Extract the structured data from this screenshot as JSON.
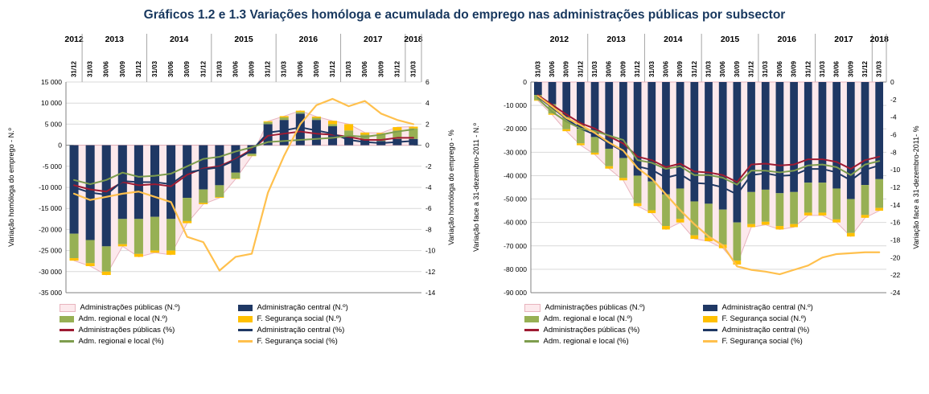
{
  "page": {
    "title": "Gráficos 1.2 e 1.3 Variações homóloga e acumulada do emprego nas administrações públicas por subsector"
  },
  "colors": {
    "central": "#1F3864",
    "regional": "#97B054",
    "ss": "#FFC000",
    "area_fill": "#FCE9EC",
    "area_stroke": "#E8B4BE",
    "line_publicas": "#9E1B32",
    "line_central": "#1F3864",
    "line_regional": "#7E9D4E",
    "line_ss": "#FFC04D",
    "title": "#17375E"
  },
  "legend": {
    "items": [
      {
        "label": "Administrações públicas (N.º)",
        "swatch": "area"
      },
      {
        "label": "Administração central (N.º)",
        "swatch": "bar-navy"
      },
      {
        "label": "Adm. regional e local (N.º)",
        "swatch": "bar-green"
      },
      {
        "label": "F. Segurança social (N.º)",
        "swatch": "bar-orange"
      },
      {
        "label": "Administrações públicas (%)",
        "swatch": "line-red"
      },
      {
        "label": "Administração central (%)",
        "swatch": "line-navy"
      },
      {
        "label": "Adm. regional e local (%)",
        "swatch": "line-green"
      },
      {
        "label": "F. Segurança social (%)",
        "swatch": "line-orange"
      }
    ]
  },
  "chart_data": [
    {
      "type": "bar",
      "subtype": "stacked-bar-with-lines",
      "title": "Variação homóloga do emprego nas administrações públicas por subsector",
      "ylabel_left": "Variação homóloga do emprego - N.º",
      "ylabel_right": "Variação homóloga do emprego - %",
      "ylim_left": [
        -35000,
        15000
      ],
      "ytick_left": 5000,
      "ylim_right": [
        -14,
        6
      ],
      "ytick_right": 2,
      "grid": true,
      "legend_position": "bottom",
      "years": [
        {
          "label": "2012",
          "span": 1
        },
        {
          "label": "2013",
          "span": 4
        },
        {
          "label": "2014",
          "span": 4
        },
        {
          "label": "2015",
          "span": 4
        },
        {
          "label": "2016",
          "span": 4
        },
        {
          "label": "2017",
          "span": 4
        },
        {
          "label": "2018",
          "span": 1
        }
      ],
      "categories": [
        "31/12",
        "31/03",
        "30/06",
        "30/09",
        "31/12",
        "31/03",
        "30/06",
        "30/09",
        "31/12",
        "31/03",
        "30/06",
        "30/09",
        "31/12",
        "31/03",
        "30/06",
        "30/09",
        "31/12",
        "31/03",
        "30/06",
        "30/09",
        "31/12",
        "31/03"
      ],
      "area_series": {
        "name": "Administrações públicas (N.º)",
        "values": [
          -27400,
          -28700,
          -30800,
          -24000,
          -26500,
          -25500,
          -26000,
          -18500,
          -14000,
          -12500,
          -8000,
          -2600,
          5700,
          6900,
          8200,
          6800,
          5800,
          5000,
          3000,
          2900,
          4300,
          4400
        ]
      },
      "bar_series": [
        {
          "name": "Administração central (N.º)",
          "color": "central",
          "values": [
            -21000,
            -22500,
            -24000,
            -17500,
            -17500,
            -17000,
            -17500,
            -12500,
            -10500,
            -9500,
            -6500,
            -2000,
            5000,
            6000,
            7500,
            6000,
            4500,
            2000,
            1500,
            1000,
            1500,
            1500
          ]
        },
        {
          "name": "Adm. regional e local (N.º)",
          "color": "regional",
          "values": [
            -5800,
            -5500,
            -6000,
            -6000,
            -8300,
            -8000,
            -7500,
            -5500,
            -3200,
            -2800,
            -1400,
            -500,
            500,
            600,
            400,
            500,
            500,
            1500,
            1000,
            1500,
            2000,
            2500
          ]
        },
        {
          "name": "F. Segurança social (N.º)",
          "color": "ss",
          "values": [
            -600,
            -700,
            -800,
            -500,
            -700,
            -500,
            -1000,
            -500,
            -300,
            -200,
            -100,
            -100,
            200,
            300,
            300,
            300,
            800,
            1500,
            500,
            400,
            800,
            400
          ]
        }
      ],
      "line_series": [
        {
          "name": "Administrações públicas (%)",
          "color": "line_publicas",
          "width": 2,
          "values": [
            -3.8,
            -4.2,
            -4.4,
            -3.5,
            -3.8,
            -3.7,
            -3.9,
            -2.8,
            -2.2,
            -2.0,
            -1.3,
            -0.4,
            0.9,
            1.1,
            1.3,
            1.1,
            1.0,
            0.8,
            0.5,
            0.5,
            0.7,
            0.7
          ]
        },
        {
          "name": "Administração central (%)",
          "color": "line_central",
          "width": 2,
          "values": [
            -4.0,
            -4.5,
            -4.7,
            -3.4,
            -3.5,
            -3.5,
            -3.7,
            -2.6,
            -2.3,
            -2.1,
            -1.4,
            -0.5,
            1.2,
            1.4,
            1.7,
            1.4,
            1.1,
            0.5,
            0.3,
            0.2,
            0.3,
            0.4
          ]
        },
        {
          "name": "Adm. regional e local (%)",
          "color": "line_regional",
          "width": 2,
          "values": [
            -3.3,
            -3.7,
            -3.3,
            -2.6,
            -3.0,
            -2.9,
            -2.7,
            -2.0,
            -1.3,
            -1.1,
            -0.6,
            -0.2,
            0.3,
            0.4,
            0.5,
            0.6,
            0.7,
            0.9,
            0.8,
            1.0,
            1.3,
            1.5
          ]
        },
        {
          "name": "F. Segurança social (%)",
          "color": "line_ss",
          "width": 2.2,
          "values": [
            -4.6,
            -5.2,
            -4.9,
            -4.6,
            -4.4,
            -4.9,
            -5.4,
            -8.7,
            -9.2,
            -11.9,
            -10.6,
            -10.3,
            -4.5,
            -1.0,
            2.0,
            3.8,
            4.4,
            3.7,
            4.2,
            3.0,
            2.4,
            2.0
          ]
        }
      ]
    },
    {
      "type": "bar",
      "subtype": "stacked-bar-with-lines",
      "title": "Variação acumulada do emprego nas administrações públicas por subsector",
      "ylabel_left": "Variação face a 31-dezembro-2011 - N.º",
      "ylabel_right": "Variação face a 31-dezembro-2011- %",
      "ylim_left": [
        -90000,
        0
      ],
      "ytick_left": 10000,
      "ylim_right": [
        -24,
        0
      ],
      "ytick_right": 2,
      "grid": true,
      "legend_position": "bottom",
      "years": [
        {
          "label": "2012",
          "span": 4
        },
        {
          "label": "2013",
          "span": 4
        },
        {
          "label": "2014",
          "span": 4
        },
        {
          "label": "2015",
          "span": 4
        },
        {
          "label": "2016",
          "span": 4
        },
        {
          "label": "2017",
          "span": 4
        },
        {
          "label": "2018",
          "span": 1
        }
      ],
      "categories": [
        "31/03",
        "30/06",
        "30/09",
        "31/12",
        "31/03",
        "30/06",
        "30/09",
        "31/12",
        "31/03",
        "30/06",
        "30/09",
        "31/12",
        "31/03",
        "30/06",
        "30/09",
        "31/12",
        "31/03",
        "30/06",
        "30/09",
        "31/12",
        "31/03",
        "30/06",
        "30/09",
        "31/12",
        "31/03"
      ],
      "area_series": {
        "name": "Administrações públicas (N.º)",
        "values": [
          -8000,
          -14000,
          -21000,
          -27000,
          -31000,
          -37000,
          -42000,
          -53000,
          -56000,
          -63000,
          -60000,
          -67000,
          -68000,
          -71000,
          -78000,
          -62000,
          -61000,
          -63000,
          -62000,
          -57000,
          -57000,
          -60000,
          -66000,
          -58000,
          -55000
        ]
      },
      "bar_series": [
        {
          "name": "Administração central (N.º)",
          "color": "central",
          "values": [
            -5500,
            -9500,
            -15000,
            -20000,
            -23500,
            -28500,
            -32500,
            -40000,
            -42500,
            -48000,
            -45500,
            -51000,
            -52000,
            -54500,
            -60000,
            -47000,
            -46000,
            -47500,
            -47000,
            -43000,
            -43000,
            -45500,
            -50000,
            -44000,
            -41500
          ]
        },
        {
          "name": "Adm. regional e local (N.º)",
          "color": "regional",
          "values": [
            -2200,
            -4000,
            -5200,
            -6200,
            -6700,
            -7500,
            -8500,
            -11800,
            -12300,
            -13500,
            -13000,
            -14500,
            -14500,
            -15000,
            -16300,
            -13700,
            -13700,
            -14000,
            -13700,
            -12800,
            -12800,
            -13200,
            -14500,
            -12800,
            -12300
          ]
        },
        {
          "name": "F. Segurança social (N.º)",
          "color": "ss",
          "values": [
            -300,
            -500,
            -800,
            -800,
            -800,
            -1000,
            -1000,
            -1200,
            -1200,
            -1500,
            -1500,
            -1500,
            -1500,
            -1500,
            -1700,
            -1300,
            -1300,
            -1500,
            -1300,
            -1200,
            -1200,
            -1300,
            -1500,
            -1200,
            -1200
          ]
        }
      ],
      "line_series": [
        {
          "name": "Administrações públicas (%)",
          "color": "line_publicas",
          "width": 2,
          "values": [
            -1.5,
            -2.6,
            -3.7,
            -4.7,
            -5.3,
            -6.2,
            -7.0,
            -8.5,
            -8.9,
            -9.7,
            -9.3,
            -10.2,
            -10.3,
            -10.6,
            -11.4,
            -9.4,
            -9.3,
            -9.5,
            -9.4,
            -8.8,
            -8.8,
            -9.1,
            -9.9,
            -8.9,
            -8.5
          ]
        },
        {
          "name": "Administração central (%)",
          "color": "line_central",
          "width": 2,
          "values": [
            -1.7,
            -2.9,
            -4.2,
            -5.3,
            -6.0,
            -7.0,
            -7.9,
            -9.6,
            -10.0,
            -10.9,
            -10.5,
            -11.5,
            -11.6,
            -12.0,
            -12.8,
            -10.6,
            -10.4,
            -10.7,
            -10.6,
            -9.9,
            -9.9,
            -10.3,
            -11.2,
            -10.0,
            -9.5
          ]
        },
        {
          "name": "Adm. regional e local (%)",
          "color": "line_regional",
          "width": 2,
          "values": [
            -1.9,
            -3.4,
            -4.5,
            -5.3,
            -5.6,
            -6.1,
            -6.6,
            -8.9,
            -9.2,
            -9.9,
            -9.6,
            -10.6,
            -10.6,
            -10.9,
            -11.7,
            -10.1,
            -10.1,
            -10.3,
            -10.1,
            -9.5,
            -9.4,
            -9.7,
            -10.6,
            -9.4,
            -9.0
          ]
        },
        {
          "name": "F. Segurança social (%)",
          "color": "line_ss",
          "width": 2.2,
          "values": [
            -1.6,
            -2.8,
            -4.1,
            -4.9,
            -5.8,
            -6.9,
            -7.8,
            -9.8,
            -11.0,
            -12.8,
            -14.6,
            -16.2,
            -17.6,
            -18.6,
            -21.0,
            -21.4,
            -21.6,
            -21.9,
            -21.4,
            -20.9,
            -20.0,
            -19.6,
            -19.5,
            -19.4,
            -19.4
          ]
        }
      ]
    }
  ]
}
